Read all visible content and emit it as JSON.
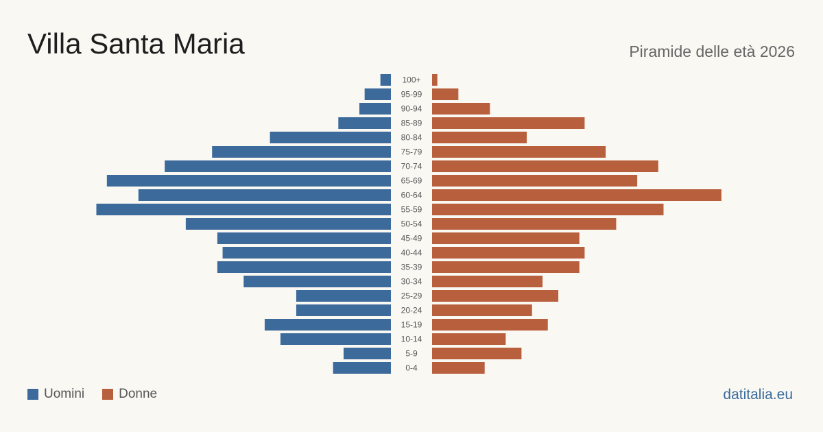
{
  "header": {
    "title": "Villa Santa Maria",
    "subtitle": "Piramide delle età 2026"
  },
  "footer": {
    "brand": "datitalia.eu"
  },
  "colors": {
    "male": "#3c6a9b",
    "female": "#b85f3d",
    "background": "#faf8f3"
  },
  "chart_data": {
    "type": "bar",
    "orientation": "horizontal-pyramid",
    "title": "Villa Santa Maria",
    "subtitle": "Piramide delle età 2026",
    "categories": [
      "100+",
      "95-99",
      "90-94",
      "85-89",
      "80-84",
      "75-79",
      "70-74",
      "65-69",
      "60-64",
      "55-59",
      "50-54",
      "45-49",
      "40-44",
      "35-39",
      "30-34",
      "25-29",
      "20-24",
      "15-19",
      "10-14",
      "5-9",
      "0-4"
    ],
    "series": [
      {
        "name": "Uomini",
        "color": "#3c6a9b",
        "values": [
          2,
          5,
          6,
          10,
          23,
          34,
          43,
          54,
          48,
          56,
          39,
          33,
          32,
          33,
          28,
          18,
          18,
          24,
          21,
          9,
          11
        ]
      },
      {
        "name": "Donne",
        "color": "#b85f3d",
        "values": [
          1,
          5,
          11,
          29,
          18,
          33,
          43,
          39,
          55,
          44,
          35,
          28,
          29,
          28,
          21,
          24,
          19,
          22,
          14,
          17,
          10
        ]
      }
    ],
    "legend_position": "bottom-left",
    "grid": false
  }
}
